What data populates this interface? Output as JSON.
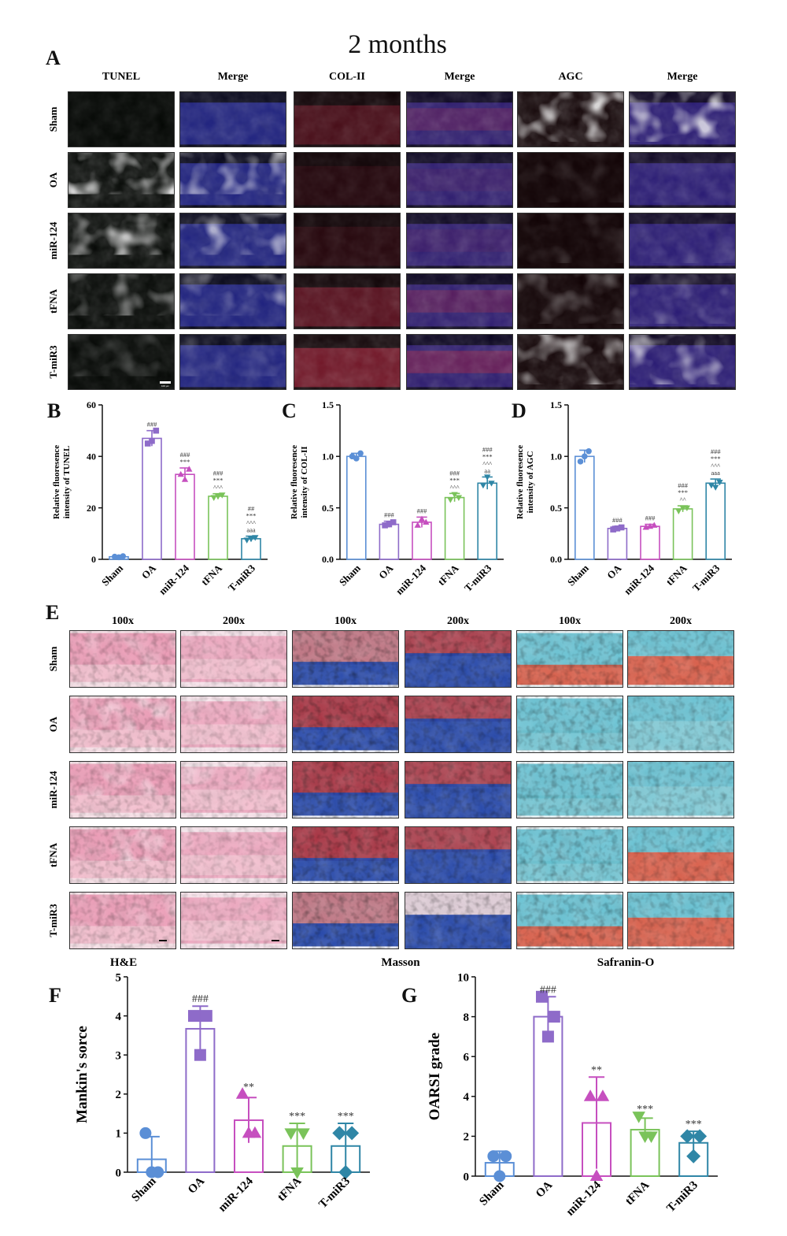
{
  "figure": {
    "title": "2 months",
    "panel_letters": [
      "A",
      "B",
      "C",
      "D",
      "E",
      "F",
      "G"
    ],
    "panel_a": {
      "columns": [
        "TUNEL",
        "Merge",
        "COL-II",
        "Merge",
        "AGC",
        "Merge"
      ],
      "rows": [
        "Sham",
        "OA",
        "miR-124",
        "tFNA",
        "T-miR3"
      ]
    },
    "panel_e": {
      "columns": [
        "100x",
        "200x",
        "100x",
        "200x",
        "100x",
        "200x"
      ],
      "rows": [
        "Sham",
        "OA",
        "miR-124",
        "tFNA",
        "T-miR3"
      ],
      "stains": [
        "H&E",
        "Masson",
        "Safranin-O"
      ]
    },
    "scale_bar_label": "100 μm",
    "colors": {
      "sham": "#5b8fd6",
      "oa": "#8e6bc9",
      "mir124": "#c64fbf",
      "tfna": "#7ac35a",
      "tmir3": "#2f86a6",
      "tunel": "#1f9c2e",
      "dapi": "#2b2fb5",
      "col2": "#b0203a",
      "he": "#e6648e",
      "masson_red": "#9c1322",
      "masson_blue": "#1b3fa8",
      "safranin_red": "#d8452c",
      "safranin_teal": "#3eb3c8"
    }
  },
  "chart_data": [
    {
      "panel": "B",
      "type": "bar",
      "categories": [
        "Sham",
        "OA",
        "miR-124",
        "tFNA",
        "T-miR3"
      ],
      "values": [
        1,
        47,
        33,
        24.5,
        8
      ],
      "errors": [
        0.3,
        3,
        2.5,
        1,
        1
      ],
      "points": [
        [
          1,
          1.2,
          0.8
        ],
        [
          45,
          50,
          46
        ],
        [
          33,
          35,
          31
        ],
        [
          24,
          25,
          24.5
        ],
        [
          7.5,
          8.5,
          8
        ]
      ],
      "markers": [
        "circle",
        "square",
        "triangle",
        "triangle-down",
        "triangle-down"
      ],
      "annotations": [
        [],
        [
          "###"
        ],
        [
          "###",
          "***"
        ],
        [
          "###",
          "***",
          "^^^"
        ],
        [
          "##",
          "***",
          "^^^",
          "aaa"
        ]
      ],
      "ylabel": "Relative fluoresence intensity of TUNEL",
      "ylim": [
        0,
        60
      ],
      "yticks": [
        0,
        20,
        40,
        60
      ]
    },
    {
      "panel": "C",
      "type": "bar",
      "categories": [
        "Sham",
        "OA",
        "miR-124",
        "tFNA",
        "T-miR3"
      ],
      "values": [
        1.0,
        0.34,
        0.36,
        0.6,
        0.74
      ],
      "errors": [
        0.03,
        0.03,
        0.05,
        0.04,
        0.06
      ],
      "points": [
        [
          1.0,
          1.03,
          0.98
        ],
        [
          0.33,
          0.36,
          0.34
        ],
        [
          0.33,
          0.36,
          0.39
        ],
        [
          0.58,
          0.6,
          0.63
        ],
        [
          0.72,
          0.74,
          0.8
        ]
      ],
      "markers": [
        "circle",
        "square",
        "triangle",
        "triangle-down",
        "triangle-down"
      ],
      "annotations": [
        [],
        [
          "###"
        ],
        [
          "###"
        ],
        [
          "###",
          "***",
          "^^^"
        ],
        [
          "###",
          "***",
          "^^^",
          "aa"
        ]
      ],
      "ylabel": "Relative fluoresence intensity of COL-II",
      "ylim": [
        0,
        1.5
      ],
      "yticks": [
        "0.0",
        "0.5",
        "1.0",
        "1.5"
      ]
    },
    {
      "panel": "D",
      "type": "bar",
      "categories": [
        "Sham",
        "OA",
        "miR-124",
        "tFNA",
        "T-miR3"
      ],
      "values": [
        1.0,
        0.3,
        0.32,
        0.49,
        0.74
      ],
      "errors": [
        0.06,
        0.02,
        0.02,
        0.03,
        0.04
      ],
      "points": [
        [
          0.95,
          1.05,
          1.0
        ],
        [
          0.29,
          0.31,
          0.3
        ],
        [
          0.31,
          0.33,
          0.32
        ],
        [
          0.47,
          0.5,
          0.5
        ],
        [
          0.72,
          0.75,
          0.7
        ]
      ],
      "markers": [
        "circle",
        "square",
        "triangle",
        "triangle-down",
        "triangle-down"
      ],
      "annotations": [
        [],
        [
          "###"
        ],
        [
          "###"
        ],
        [
          "###",
          "***",
          "^^"
        ],
        [
          "###",
          "***",
          "^^^",
          "aaa"
        ]
      ],
      "ylabel": "Relative fluoresence intensity of AGC",
      "ylim": [
        0,
        1.5
      ],
      "yticks": [
        "0.0",
        "0.5",
        "1.0",
        "1.5"
      ]
    },
    {
      "panel": "F",
      "type": "bar",
      "categories": [
        "Sham",
        "OA",
        "miR-124",
        "tFNA",
        "T-miR3"
      ],
      "values": [
        0.33,
        3.67,
        1.33,
        0.67,
        0.67
      ],
      "errors": [
        0.58,
        0.58,
        0.58,
        0.58,
        0.58
      ],
      "points": [
        [
          1,
          0,
          0
        ],
        [
          4,
          4,
          3
        ],
        [
          2,
          1,
          1
        ],
        [
          1,
          1,
          0
        ],
        [
          1,
          1,
          0
        ]
      ],
      "markers": [
        "circle",
        "square",
        "triangle",
        "triangle-down",
        "diamond"
      ],
      "annotations": [
        [],
        [
          "###"
        ],
        [
          "**"
        ],
        [
          "***"
        ],
        [
          "***"
        ]
      ],
      "ylabel": "Mankin's sorce",
      "ylim": [
        0,
        5
      ],
      "yticks": [
        0,
        1,
        2,
        3,
        4,
        5
      ]
    },
    {
      "panel": "G",
      "type": "bar",
      "categories": [
        "Sham",
        "OA",
        "miR-124",
        "tFNA",
        "T-miR3"
      ],
      "values": [
        0.67,
        8.0,
        2.67,
        2.33,
        1.67
      ],
      "errors": [
        0.58,
        1.0,
        2.3,
        0.58,
        0.58
      ],
      "points": [
        [
          1,
          1,
          0
        ],
        [
          9,
          8,
          7
        ],
        [
          4,
          4,
          0
        ],
        [
          3,
          2,
          2
        ],
        [
          2,
          2,
          1
        ]
      ],
      "markers": [
        "circle",
        "square",
        "triangle",
        "triangle-down",
        "diamond"
      ],
      "annotations": [
        [],
        [
          "###"
        ],
        [
          "**"
        ],
        [
          "***"
        ],
        [
          "***"
        ]
      ],
      "ylabel": "OARSI grade",
      "ylim": [
        0,
        10
      ],
      "yticks": [
        0,
        2,
        4,
        6,
        8,
        10
      ]
    }
  ]
}
